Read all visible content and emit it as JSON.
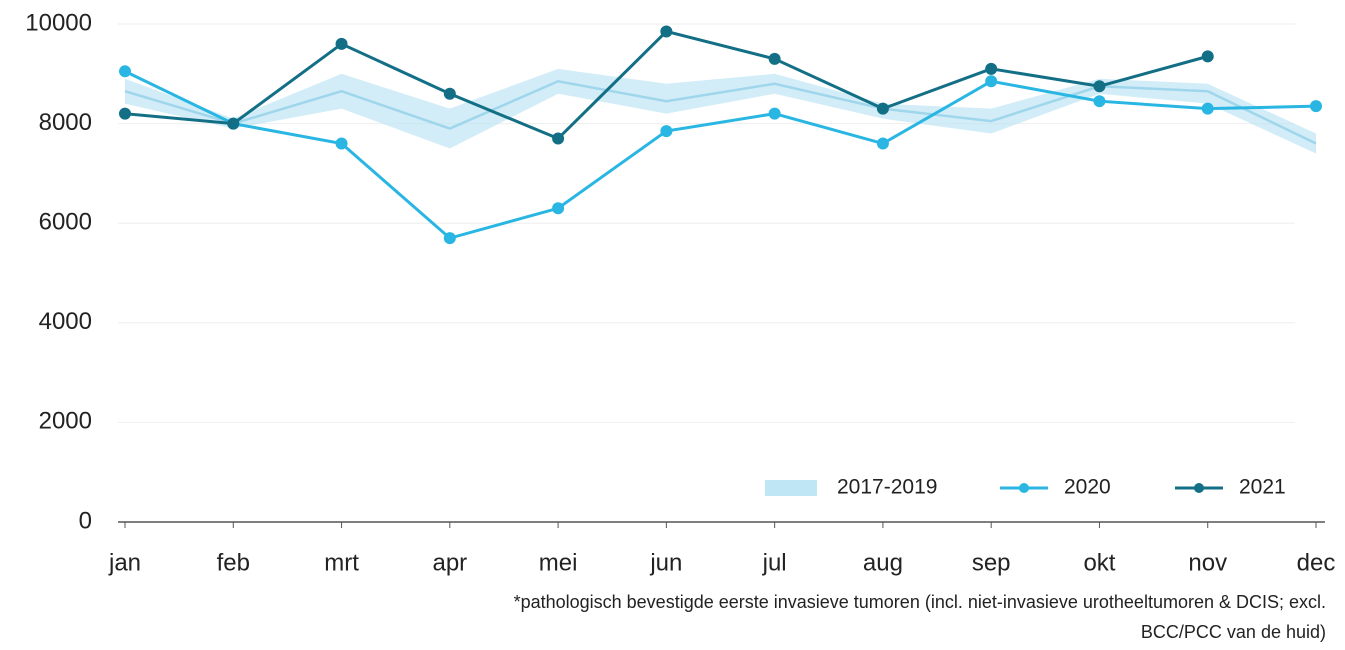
{
  "chart_data": {
    "type": "line",
    "categories": [
      "jan",
      "feb",
      "mrt",
      "apr",
      "mei",
      "jun",
      "jul",
      "aug",
      "sep",
      "okt",
      "nov",
      "dec"
    ],
    "ylim": [
      0,
      10000
    ],
    "yticks": [
      0,
      2000,
      4000,
      6000,
      8000,
      10000
    ],
    "grid": true,
    "legend": "bottom-right",
    "series": [
      {
        "name": "2017-2019",
        "color": "#9fd6ec",
        "band_color": "#bfe6f4",
        "values": [
          8650,
          8000,
          8650,
          7900,
          8850,
          8450,
          8800,
          8300,
          8050,
          8750,
          8650,
          7600
        ],
        "low": [
          8400,
          7900,
          8300,
          7500,
          8600,
          8200,
          8600,
          8100,
          7800,
          8600,
          8400,
          7400
        ],
        "high": [
          8900,
          8100,
          9000,
          8300,
          9100,
          8800,
          9000,
          8400,
          8300,
          8900,
          8800,
          7800
        ]
      },
      {
        "name": "2020",
        "color": "#29b6e3",
        "values": [
          9050,
          8000,
          7600,
          5700,
          6300,
          7850,
          8200,
          7600,
          8850,
          8450,
          8300,
          8350
        ]
      },
      {
        "name": "2021",
        "color": "#136f86",
        "values": [
          8200,
          8000,
          9600,
          8600,
          7700,
          9850,
          9300,
          8300,
          9100,
          8750,
          9350,
          null
        ]
      }
    ],
    "footnote": [
      "*pathologisch bevestigde eerste invasieve tumoren (incl. niet-invasieve urotheeltumoren &  DCIS; excl.",
      "BCC/PCC van de huid)"
    ]
  }
}
